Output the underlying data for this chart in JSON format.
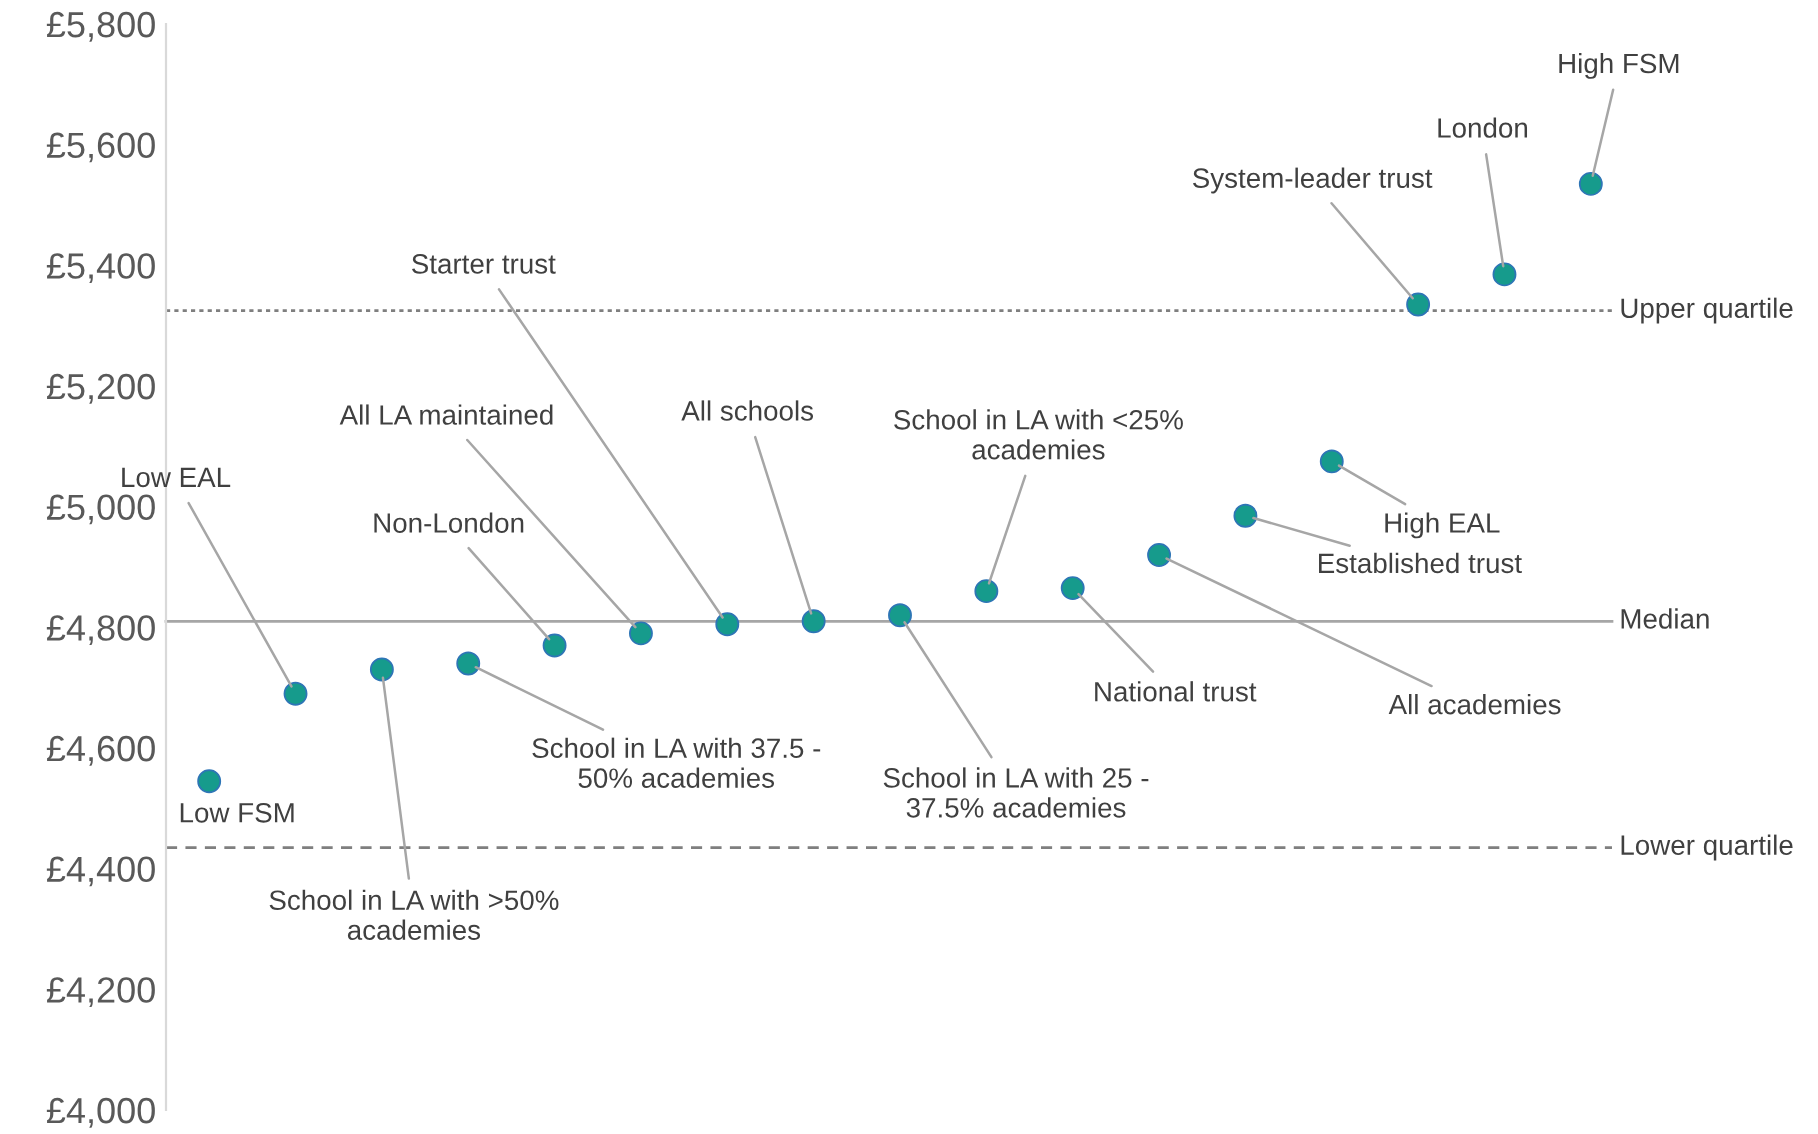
{
  "chart_data": {
    "type": "scatter",
    "categories": [
      null,
      null,
      null,
      null,
      null,
      null,
      null,
      null,
      null,
      null,
      null,
      null,
      null,
      null,
      null,
      null,
      null
    ],
    "series": [
      {
        "color": "#169b8c",
        "values": [
          4545,
          4690,
          4730,
          4740,
          4770,
          4790,
          4805,
          4810,
          4820,
          4860,
          4865,
          4920,
          4985,
          5075,
          5335,
          5385,
          5535
        ]
      }
    ],
    "annotations": [
      "Low FSM",
      "Low EAL",
      "School in LA with >50%\nacademies",
      "School in LA with 37.5 -\n50% academies",
      "Non-London",
      "All LA maintained",
      "Starter trust",
      "All schools",
      "School in LA with 25 -\n37.5% academies",
      "School in LA with <25%\nacademies",
      "National trust",
      "All academies",
      "Established trust",
      "High EAL",
      "System-leader trust",
      "London",
      "High FSM"
    ],
    "marker": "circle",
    "ylim": [
      4000,
      5800
    ],
    "yticks": [
      {
        "value": 4000,
        "label": "£4,000"
      },
      {
        "value": 4200,
        "label": "£4,200"
      },
      {
        "value": 4400,
        "label": "£4,400"
      },
      {
        "value": 4600,
        "label": "£4,600"
      },
      {
        "value": 4800,
        "label": "£4,800"
      },
      {
        "value": 5000,
        "label": "£5,000"
      },
      {
        "value": 5200,
        "label": "£5,200"
      },
      {
        "value": 5400,
        "label": "£5,400"
      },
      {
        "value": 5600,
        "label": "£5,600"
      },
      {
        "value": 5800,
        "label": "£5,800"
      }
    ],
    "ref_lines": [
      {
        "axis": "y",
        "value": 5325,
        "label": "Upper quartile",
        "color": "#7f7f7f",
        "line_style": "dotted"
      },
      {
        "axis": "y",
        "value": 4810,
        "label": "Median",
        "color": "#a6a6a6",
        "line_style": "solid"
      },
      {
        "axis": "y",
        "value": 4435,
        "label": "Lower quartile",
        "color": "#7f7f7f",
        "line_style": "dashed"
      }
    ],
    "tick_labels": "y",
    "grid": false,
    "legend": false
  }
}
